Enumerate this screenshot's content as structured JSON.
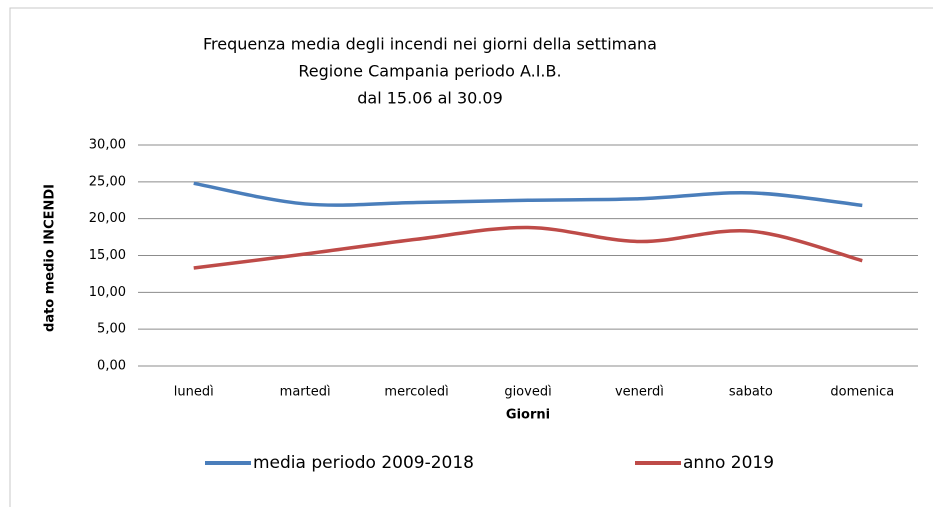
{
  "chart_data": {
    "type": "line",
    "title": [
      "Frequenza media degli incendi nei giorni della settimana",
      "Regione Campania  periodo A.I.B.",
      "dal 15.06  al 30.09"
    ],
    "xlabel": "Giorni",
    "ylabel": "dato medio INCENDI",
    "categories": [
      "lunedì",
      "martedì",
      "mercoledì",
      "giovedì",
      "venerdì",
      "sabato",
      "domenica"
    ],
    "series": [
      {
        "name": "media periodo 2009-2018",
        "color": "#4a7ebb",
        "values": [
          24.8,
          22.0,
          22.2,
          22.5,
          22.7,
          23.5,
          21.8
        ]
      },
      {
        "name": "anno 2019",
        "color": "#be4b48",
        "values": [
          13.3,
          15.2,
          17.2,
          18.8,
          16.9,
          18.3,
          14.3
        ]
      }
    ],
    "ylim": [
      0,
      30
    ],
    "yticks": [
      {
        "value": 0,
        "label": "0,00"
      },
      {
        "value": 5,
        "label": "5,00"
      },
      {
        "value": 10,
        "label": "10,00"
      },
      {
        "value": 15,
        "label": "15,00"
      },
      {
        "value": 20,
        "label": "20,00"
      },
      {
        "value": 25,
        "label": "25,00"
      },
      {
        "value": 30,
        "label": "30,00"
      }
    ],
    "grid": true,
    "legend": "bottom"
  }
}
